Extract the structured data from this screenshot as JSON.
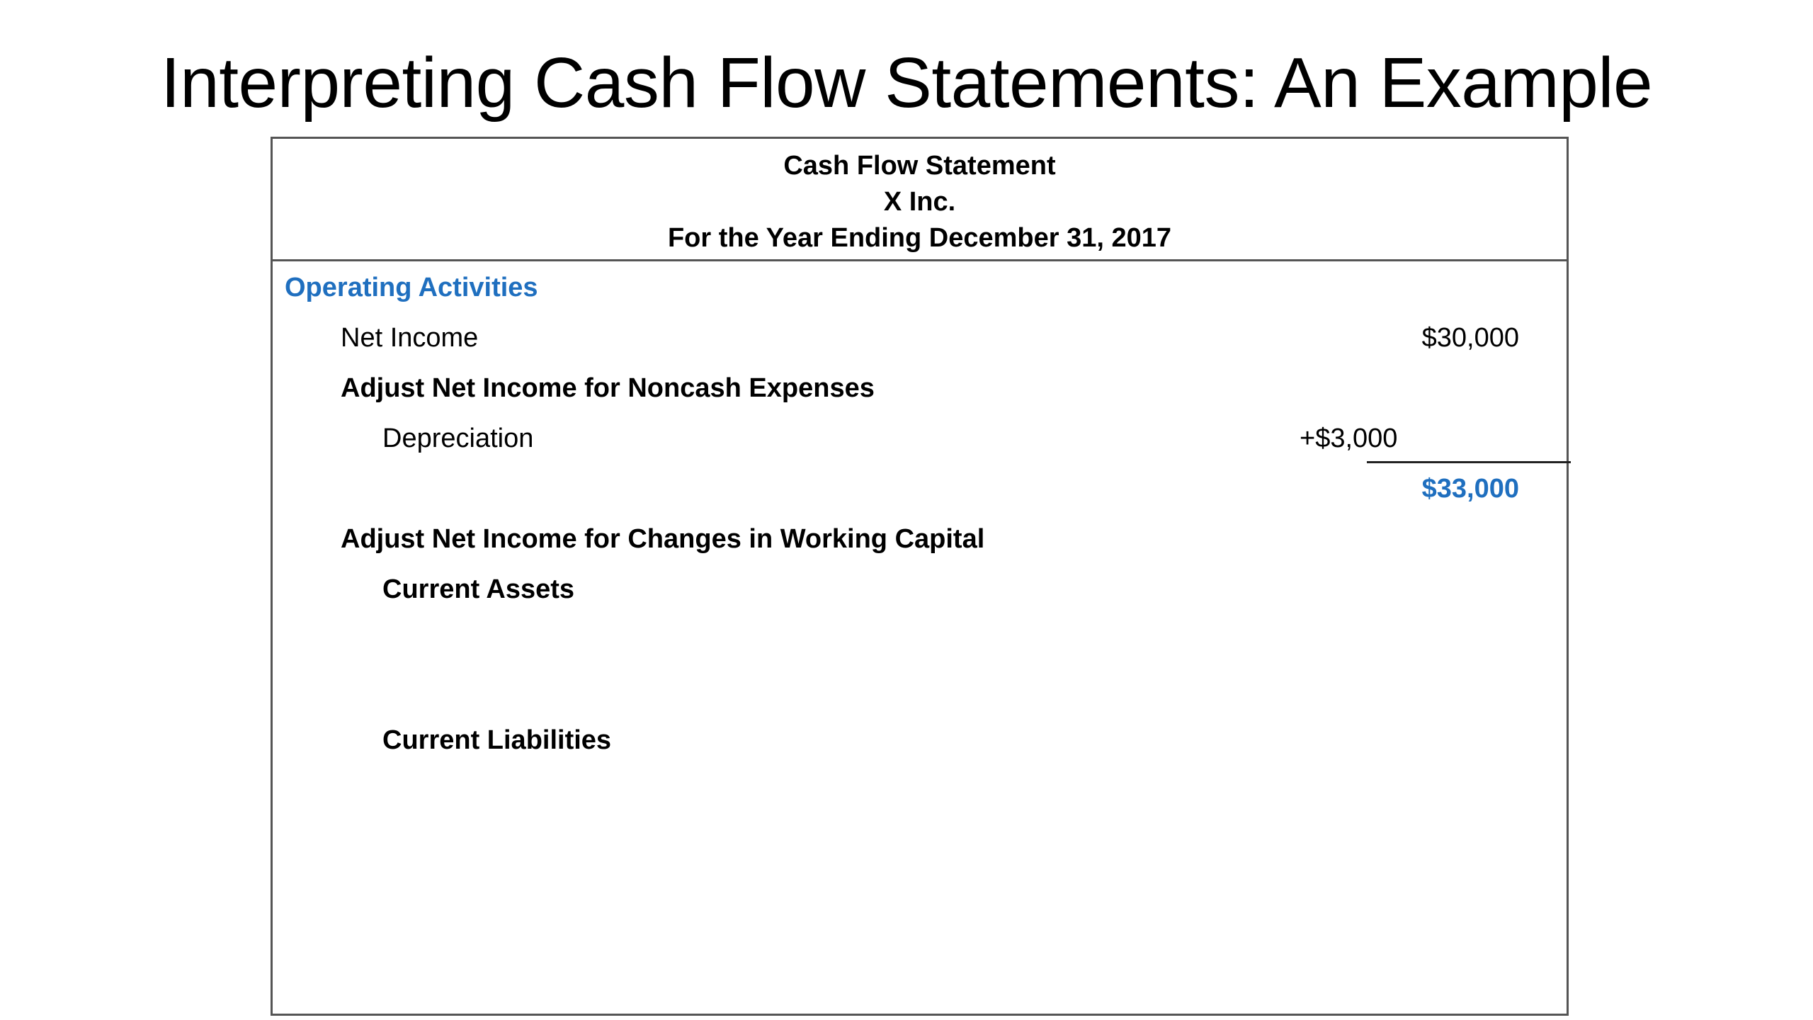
{
  "slide": {
    "title": "Interpreting Cash Flow Statements: An Example"
  },
  "statement": {
    "header": {
      "line1": "Cash Flow Statement",
      "line2": "X Inc.",
      "line3": "For the Year Ending December 31, 2017"
    },
    "operating": {
      "section_label": "Operating Activities",
      "net_income_label": "Net Income",
      "net_income_value": "$30,000",
      "noncash_label": "Adjust Net Income for Noncash Expenses",
      "depreciation_label": "Depreciation",
      "depreciation_value": "+$3,000",
      "subtotal_value": "$33,000",
      "working_capital_label": "Adjust Net Income for Changes in Working Capital",
      "current_assets_label": "Current Assets",
      "current_liabilities_label": "Current Liabilities"
    }
  },
  "colors": {
    "accent": "#1f6fbf",
    "border": "#555555"
  }
}
